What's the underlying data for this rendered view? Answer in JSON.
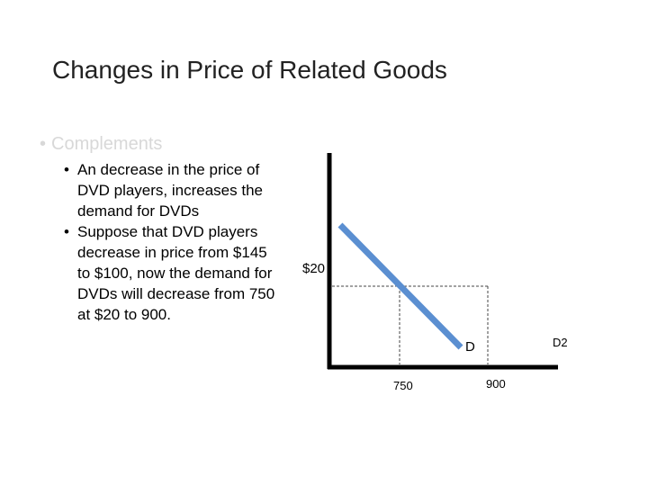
{
  "slide": {
    "title": "Changes in Price of Related Goods"
  },
  "bullets": {
    "heading": "Complements",
    "items": [
      {
        "text": "An decrease in the price of DVD players, increases the demand for DVDs"
      },
      {
        "text": "Suppose that DVD players decrease in price from $145 to $100, now the demand for DVDs will decrease from 750 at $20 to 900."
      }
    ]
  },
  "diagram": {
    "price_label": "$20",
    "q1_label": "750",
    "q2_label": "900",
    "d_label": "D",
    "d2_label": "D2",
    "colors": {
      "demand_line": "#5b8fd1",
      "axes": "#000000",
      "guides": "#444444"
    }
  }
}
